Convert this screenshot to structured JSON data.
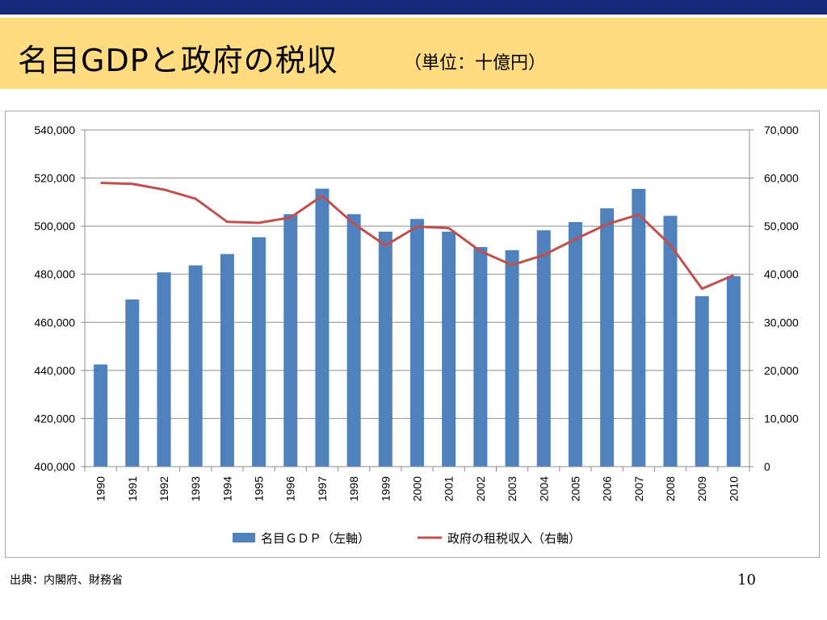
{
  "slide": {
    "title": "名目GDPと政府の税収",
    "unit": "（単位：十億円）",
    "source": "出典：内閣府、財務省",
    "page_number": "10"
  },
  "colors": {
    "top_bar": "#172a78",
    "header_band": "#ffdc82",
    "bar": "#4f81bd",
    "line": "#c0504d"
  },
  "chart_data": {
    "type": "bar+line",
    "categories": [
      "1990",
      "1991",
      "1992",
      "1993",
      "1994",
      "1995",
      "1996",
      "1997",
      "1998",
      "1999",
      "2000",
      "2001",
      "2002",
      "2003",
      "2004",
      "2005",
      "2006",
      "2007",
      "2008",
      "2009",
      "2010"
    ],
    "series": [
      {
        "name": "名目ＧＤＰ（左軸）",
        "type": "bar",
        "axis": "left",
        "values": [
          442500,
          469500,
          480800,
          483700,
          488400,
          495400,
          505000,
          515600,
          505000,
          497700,
          503000,
          497700,
          491300,
          490000,
          498300,
          501700,
          507400,
          515500,
          504300,
          470900,
          479200
        ]
      },
      {
        "name": "政府の租税収入（右軸）",
        "type": "line",
        "axis": "right",
        "values": [
          59000,
          58800,
          57600,
          55700,
          50900,
          50700,
          51800,
          56300,
          50500,
          46000,
          49900,
          49600,
          44800,
          41900,
          44000,
          47300,
          50400,
          52400,
          46100,
          37000,
          39800
        ]
      }
    ],
    "y_left": {
      "min": 400000,
      "max": 540000,
      "ticks": [
        "400,000",
        "420,000",
        "440,000",
        "460,000",
        "480,000",
        "500,000",
        "520,000",
        "540,000"
      ]
    },
    "y_right": {
      "min": 0,
      "max": 70000,
      "ticks": [
        "0",
        "10,000",
        "20,000",
        "30,000",
        "40,000",
        "50,000",
        "60,000",
        "70,000"
      ]
    },
    "grid": true,
    "legend_position": "bottom"
  }
}
